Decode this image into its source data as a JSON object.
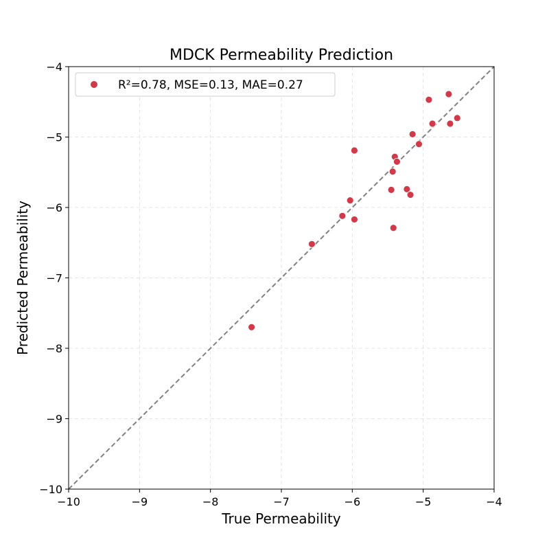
{
  "chart_data": {
    "type": "scatter",
    "title": "MDCK Permeability Prediction",
    "xlabel": "True Permeability",
    "ylabel": "Predicted Permeability",
    "xlim": [
      -10,
      -4
    ],
    "ylim": [
      -10,
      -4
    ],
    "xticks": [
      -10,
      -9,
      -8,
      -7,
      -6,
      -5,
      -4
    ],
    "yticks": [
      -10,
      -9,
      -8,
      -7,
      -6,
      -5,
      -4
    ],
    "xtick_labels": [
      "−10",
      "−9",
      "−8",
      "−7",
      "−6",
      "−5",
      "−4"
    ],
    "ytick_labels": [
      "−10",
      "−9",
      "−8",
      "−7",
      "−6",
      "−5",
      "−4"
    ],
    "grid": true,
    "legend_position": "top-left",
    "reference_line": "y = x",
    "series": [
      {
        "name": "R²=0.78, MSE=0.13, MAE=0.27",
        "color": "#d03a4a",
        "points": [
          [
            -7.42,
            -7.7
          ],
          [
            -6.57,
            -6.52
          ],
          [
            -6.14,
            -6.12
          ],
          [
            -6.03,
            -5.9
          ],
          [
            -5.97,
            -5.19
          ],
          [
            -5.97,
            -6.17
          ],
          [
            -5.45,
            -5.75
          ],
          [
            -5.43,
            -5.49
          ],
          [
            -5.42,
            -6.29
          ],
          [
            -5.4,
            -5.28
          ],
          [
            -5.37,
            -5.35
          ],
          [
            -5.23,
            -5.74
          ],
          [
            -5.18,
            -5.82
          ],
          [
            -5.15,
            -4.96
          ],
          [
            -5.06,
            -5.1
          ],
          [
            -4.92,
            -4.47
          ],
          [
            -4.87,
            -4.81
          ],
          [
            -4.64,
            -4.39
          ],
          [
            -4.62,
            -4.81
          ],
          [
            -4.52,
            -4.73
          ]
        ]
      }
    ]
  }
}
